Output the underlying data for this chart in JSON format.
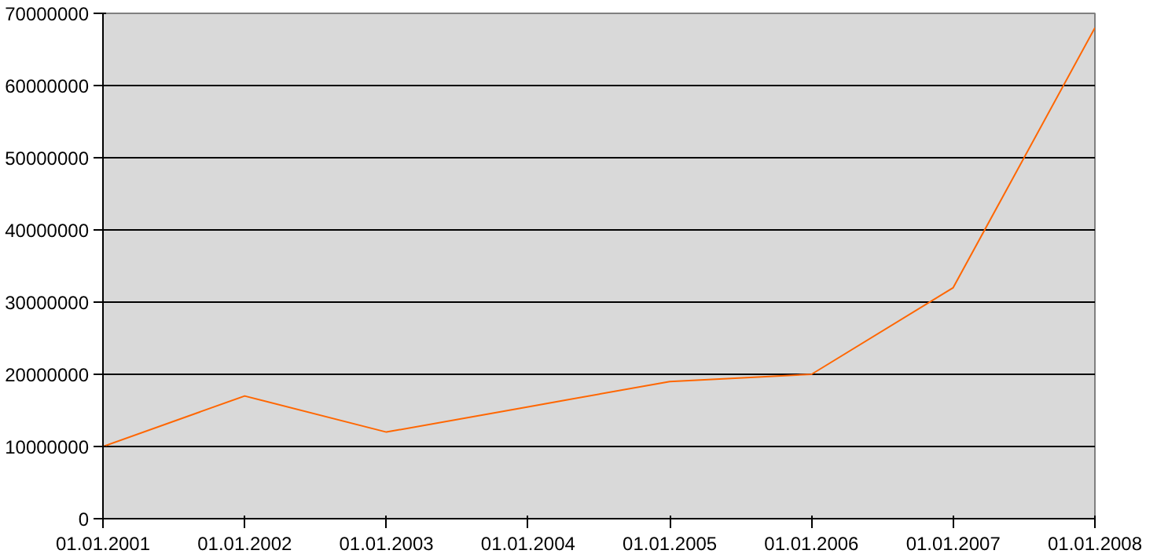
{
  "chart_data": {
    "type": "line",
    "categories": [
      "01.01.2001",
      "01.01.2002",
      "01.01.2003",
      "01.01.2004",
      "01.01.2005",
      "01.01.2006",
      "01.01.2007",
      "01.01.2008"
    ],
    "series": [
      {
        "color": "#ff6600",
        "values": [
          10000000,
          17000000,
          12000000,
          15500000,
          19000000,
          20000000,
          32000000,
          68000000
        ]
      }
    ],
    "ylim": [
      0,
      70000000
    ],
    "yticks": [
      0,
      10000000,
      20000000,
      30000000,
      40000000,
      50000000,
      60000000,
      70000000
    ],
    "grid": "y",
    "marker": "none",
    "line_style": "solid"
  }
}
